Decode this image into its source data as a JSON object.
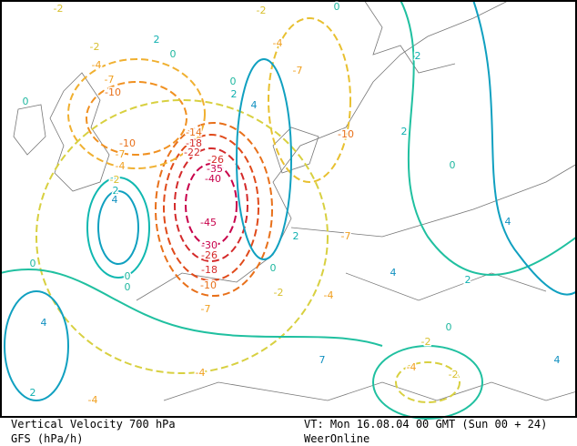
{
  "map": {
    "contour_labels": [
      "-2",
      "2",
      "0",
      "-2",
      "-4",
      "-7",
      "-10",
      "-2",
      "-4",
      "-7",
      "-10",
      "0",
      "2",
      "2",
      "0",
      "0",
      "2",
      "4",
      "-14",
      "-18",
      "-22",
      "-26",
      "-35",
      "-40",
      "-45",
      "-30",
      "-26",
      "-18",
      "-10",
      "-10",
      "-7",
      "-4",
      "-2",
      "2",
      "4",
      "0",
      "0",
      "0",
      "-7",
      "0",
      "-2",
      "-4",
      "-7",
      "2",
      "4",
      "2",
      "4",
      "0",
      "-2",
      "-4",
      "-2",
      "7",
      "-4",
      "-4",
      "4",
      "2",
      "4",
      "0"
    ],
    "footer": {
      "parameter": "Vertical Velocity 700 hPa",
      "model": "GFS (hPa/h)",
      "valid_time": "VT: Mon 16.08.04 00 GMT (Sun 00 + 24)",
      "source": "WeerOnline"
    }
  }
}
